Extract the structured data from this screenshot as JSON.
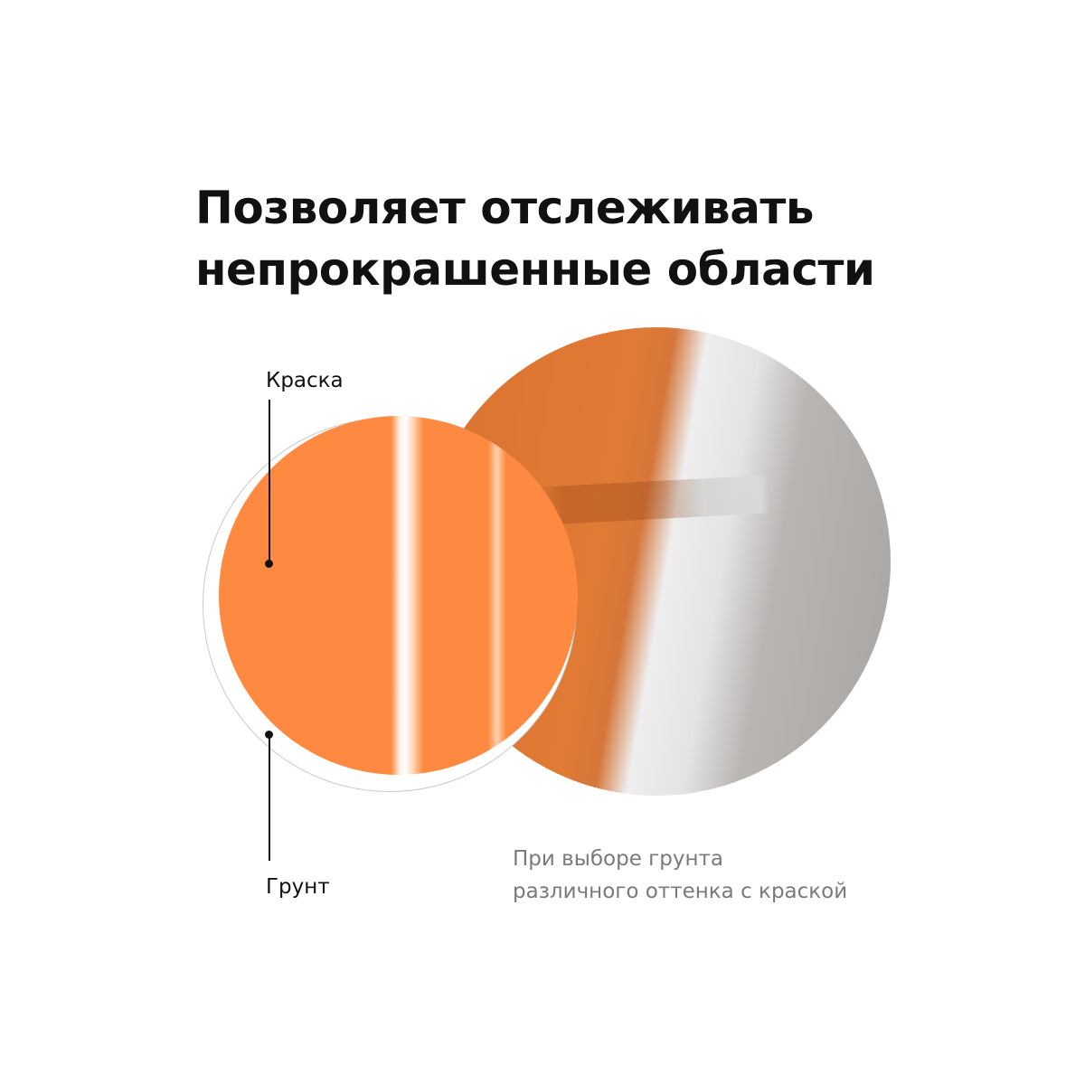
{
  "title": {
    "line1": "Позволяет отслеживать",
    "line2": "непрокрашенные области"
  },
  "labels": {
    "paint": "Краска",
    "primer": "Грунт"
  },
  "caption": {
    "line1": "При выборе грунта",
    "line2": "различного оттенка с краской"
  },
  "colors": {
    "paint_orange": "#fd8a40",
    "text": "#111111",
    "caption": "#7a7a7a"
  }
}
